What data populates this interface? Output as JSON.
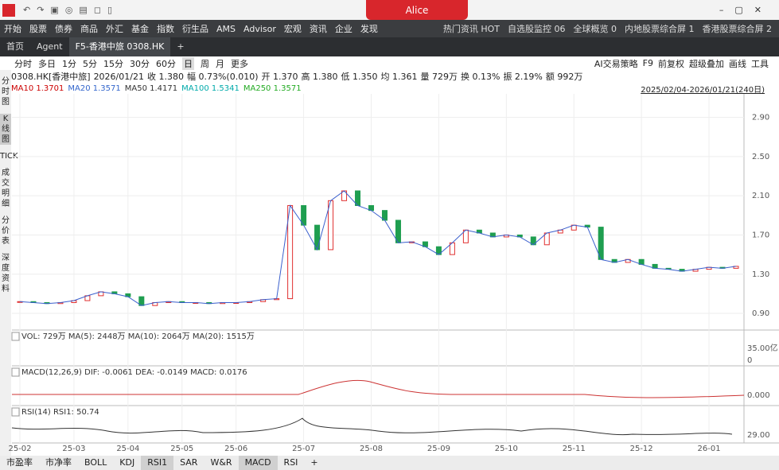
{
  "window": {
    "user": "Alice"
  },
  "menu": [
    "开始",
    "股票",
    "债券",
    "商品",
    "外汇",
    "基金",
    "指数",
    "衍生品",
    "AMS",
    "Advisor",
    "宏观",
    "资讯",
    "企业",
    "发现"
  ],
  "menu_right": [
    "热门资讯 HOT",
    "自选股监控 06",
    "全球概览 0",
    "内地股票综合屏 1",
    "香港股票综合屏 2"
  ],
  "tabs": [
    "首页",
    "Agent",
    "F5-香港中旅 0308.HK",
    "+"
  ],
  "periods": [
    "分时",
    "多日",
    "1分",
    "5分",
    "15分",
    "30分",
    "60分",
    "日",
    "周",
    "月",
    "更多"
  ],
  "tools": [
    "AI交易策略",
    "F9",
    "前复权",
    "超级叠加",
    "画线",
    "工具"
  ],
  "sidebar": [
    "分时图",
    "K线图",
    "TICK",
    "成交明细",
    "分价表",
    "深度资料"
  ],
  "quote": [
    "0308.HK[香港中旅]",
    "2026/01/21",
    "收 1.380",
    "幅 0.73%(0.010)",
    "开 1.370",
    "高 1.380",
    "低 1.350",
    "均 1.361",
    "量 729万",
    "换 0.13%",
    "振 2.19%",
    "额 992万"
  ],
  "ma": [
    "MA10 1.3701",
    "MA20 1.3571",
    "MA50 1.4171",
    "MA100 1.5341",
    "MA250 1.3571"
  ],
  "range": "2025/02/04-2026/01/21(240日)",
  "panes": {
    "vol": "VOL: 729万 MA(5): 2448万 MA(10): 2064万 MA(20): 1515万",
    "vol_axis": [
      "35.00亿",
      "0"
    ],
    "macd": "MACD(12,26,9) DIF: -0.0061 DEA: -0.0149 MACD: 0.0176",
    "macd_axis": "0.000",
    "rsi": "RSI(14) RSI1: 50.74",
    "rsi_axis": "29.00"
  },
  "bottom_tabs": [
    "市盈率",
    "市净率",
    "BOLL",
    "KDJ",
    "RSI1",
    "SAR",
    "W&R",
    "MACD",
    "RSI",
    "+"
  ],
  "chart_data": {
    "type": "candlestick",
    "categories": [
      "25-02",
      null,
      null,
      null,
      "25-03",
      null,
      null,
      null,
      "25-04",
      null,
      null,
      null,
      "25-05",
      null,
      null,
      null,
      "25-06",
      null,
      null,
      null,
      null,
      "25-07",
      null,
      null,
      null,
      null,
      "25-08",
      null,
      null,
      null,
      null,
      "25-09",
      null,
      null,
      null,
      null,
      "25-10",
      null,
      null,
      null,
      null,
      "25-11",
      null,
      null,
      null,
      null,
      "25-12",
      null,
      null,
      null,
      null,
      "26-01",
      null,
      null
    ],
    "values": [
      1.02,
      1.01,
      1.0,
      1.01,
      1.03,
      1.08,
      1.12,
      1.1,
      1.07,
      0.98,
      1.01,
      1.02,
      1.01,
      1.01,
      1.0,
      1.01,
      1.01,
      1.02,
      1.04,
      1.05,
      2.0,
      1.8,
      1.55,
      2.05,
      2.15,
      2.0,
      1.95,
      1.85,
      1.62,
      1.63,
      1.58,
      1.5,
      1.62,
      1.75,
      1.72,
      1.68,
      1.7,
      1.68,
      1.6,
      1.72,
      1.75,
      1.8,
      1.78,
      1.45,
      1.42,
      1.45,
      1.4,
      1.36,
      1.35,
      1.33,
      1.35,
      1.37,
      1.36,
      1.38
    ],
    "up_color": "#e03030",
    "down_color": "#1f9e50",
    "ylim": [
      0.73,
      3.14
    ],
    "yticks": [
      {
        "value": 0.9,
        "label": "0.90"
      },
      {
        "value": 1.3,
        "label": "1.30"
      },
      {
        "value": 1.7,
        "label": "1.70"
      },
      {
        "value": 2.1,
        "label": "2.10"
      },
      {
        "value": 2.5,
        "label": "2.50"
      },
      {
        "value": 2.9,
        "label": "2.90"
      }
    ],
    "grid": true
  }
}
